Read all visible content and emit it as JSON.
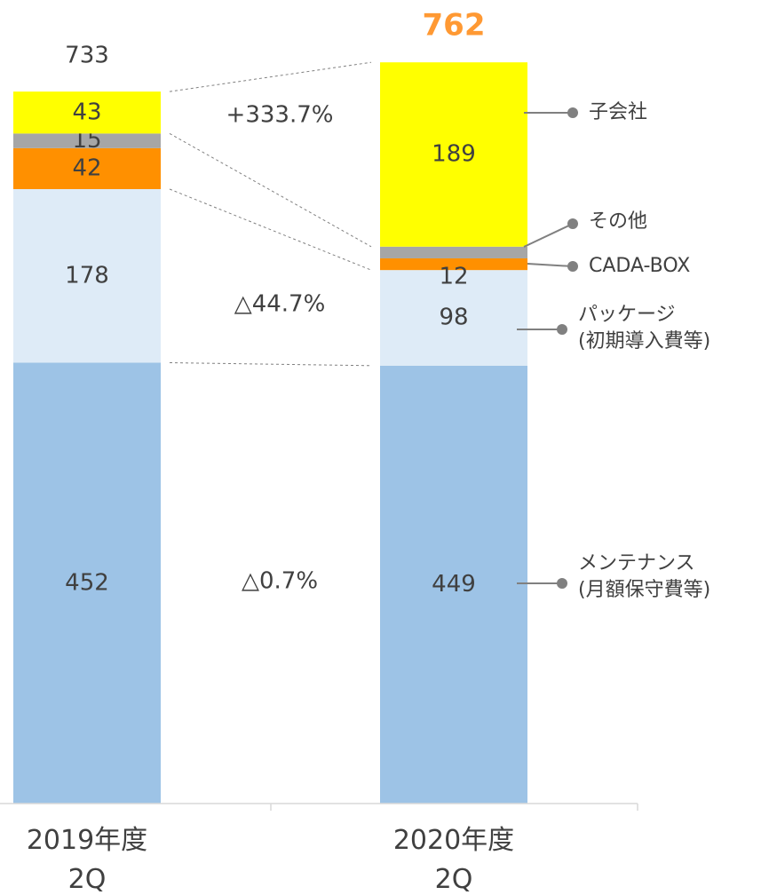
{
  "chart_data": {
    "type": "stacked-bar",
    "categories": [
      "2019年度\n2Q",
      "2020年度\n2Q"
    ],
    "series": [
      {
        "name": "メンテナンス\n(月額保守費等)",
        "color": "#9dc3e6",
        "values": [
          452,
          449
        ]
      },
      {
        "name": "パッケージ\n(初期導入費等)",
        "color": "#deebf7",
        "values": [
          178,
          98
        ]
      },
      {
        "name": "CADA-BOX",
        "color": "#ff9000",
        "values": [
          42,
          12
        ]
      },
      {
        "name": "その他",
        "color": "#a6a6a6",
        "values": [
          15,
          12
        ]
      },
      {
        "name": "子会社",
        "color": "#ffff00",
        "values": [
          43,
          189
        ]
      }
    ],
    "totals": [
      733,
      762
    ],
    "annotations": [
      "△0.7%",
      "△44.7%",
      "+333.7%"
    ],
    "ylim": [
      0,
      762
    ]
  }
}
